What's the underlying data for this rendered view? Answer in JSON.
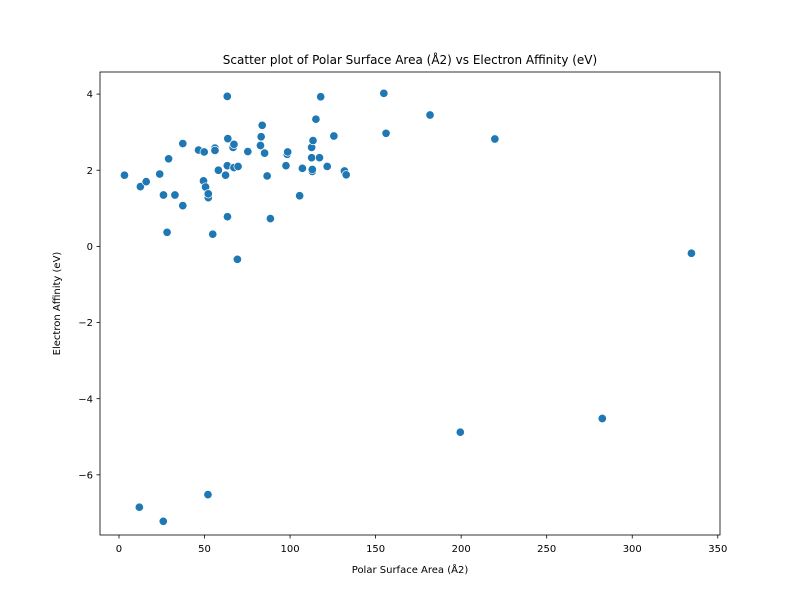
{
  "chart_data": {
    "type": "scatter",
    "title": "Scatter plot of Polar Surface Area (Å2) vs Electron Affinity (eV)",
    "xlabel": "Polar Surface Area (Å2)",
    "ylabel": "Electron Affinity (eV)",
    "xlim": [
      -11.1,
      351.3
    ],
    "ylim": [
      -7.58,
      4.58
    ],
    "xticks": [
      0,
      50,
      100,
      150,
      200,
      250,
      300,
      350
    ],
    "yticks": [
      -6,
      -4,
      -2,
      0,
      2,
      4
    ],
    "ytick_labels": [
      "−6",
      "−4",
      "−2",
      "0",
      "2",
      "4"
    ],
    "grid": false,
    "marker_color": "#1f77b4",
    "marker_edge_color": "#ffffff",
    "points": [
      {
        "x": 3.2,
        "y": 1.87
      },
      {
        "x": 12.5,
        "y": 1.57
      },
      {
        "x": 15.9,
        "y": 1.7
      },
      {
        "x": 23.8,
        "y": 1.9
      },
      {
        "x": 26.0,
        "y": 1.35
      },
      {
        "x": 28.1,
        "y": 0.37
      },
      {
        "x": 29.0,
        "y": 2.3
      },
      {
        "x": 32.7,
        "y": 1.35
      },
      {
        "x": 37.3,
        "y": 2.7
      },
      {
        "x": 37.3,
        "y": 1.07
      },
      {
        "x": 46.5,
        "y": 2.53
      },
      {
        "x": 49.4,
        "y": 1.72
      },
      {
        "x": 49.8,
        "y": 2.48
      },
      {
        "x": 50.6,
        "y": 1.56
      },
      {
        "x": 52.2,
        "y": 1.28
      },
      {
        "x": 52.2,
        "y": 1.38
      },
      {
        "x": 54.8,
        "y": 0.32
      },
      {
        "x": 56.1,
        "y": 2.58
      },
      {
        "x": 56.1,
        "y": 2.52
      },
      {
        "x": 58.1,
        "y": 2.0
      },
      {
        "x": 62.3,
        "y": 1.87
      },
      {
        "x": 63.3,
        "y": 2.12
      },
      {
        "x": 63.3,
        "y": 3.94
      },
      {
        "x": 63.4,
        "y": 0.78
      },
      {
        "x": 63.6,
        "y": 2.83
      },
      {
        "x": 66.7,
        "y": 2.6
      },
      {
        "x": 67.2,
        "y": 2.68
      },
      {
        "x": 67.2,
        "y": 2.07
      },
      {
        "x": 69.2,
        "y": -0.34
      },
      {
        "x": 69.6,
        "y": 2.1
      },
      {
        "x": 75.3,
        "y": 2.49
      },
      {
        "x": 82.7,
        "y": 2.65
      },
      {
        "x": 83.1,
        "y": 2.88
      },
      {
        "x": 83.7,
        "y": 3.18
      },
      {
        "x": 85.1,
        "y": 2.45
      },
      {
        "x": 86.6,
        "y": 1.85
      },
      {
        "x": 88.5,
        "y": 0.73
      },
      {
        "x": 97.6,
        "y": 2.12
      },
      {
        "x": 98.3,
        "y": 2.42
      },
      {
        "x": 98.6,
        "y": 2.48
      },
      {
        "x": 105.6,
        "y": 1.33
      },
      {
        "x": 107.2,
        "y": 2.05
      },
      {
        "x": 112.6,
        "y": 2.6
      },
      {
        "x": 112.6,
        "y": 2.33
      },
      {
        "x": 113.0,
        "y": 1.97
      },
      {
        "x": 113.0,
        "y": 2.02
      },
      {
        "x": 113.4,
        "y": 2.78
      },
      {
        "x": 115.1,
        "y": 3.34
      },
      {
        "x": 117.2,
        "y": 2.33
      },
      {
        "x": 117.9,
        "y": 3.93
      },
      {
        "x": 121.7,
        "y": 2.1
      },
      {
        "x": 125.6,
        "y": 2.9
      },
      {
        "x": 131.8,
        "y": 1.98
      },
      {
        "x": 132.8,
        "y": 1.88
      },
      {
        "x": 154.8,
        "y": 4.02
      },
      {
        "x": 156.1,
        "y": 2.97
      },
      {
        "x": 181.8,
        "y": 3.45
      },
      {
        "x": 199.5,
        "y": -4.88
      },
      {
        "x": 219.7,
        "y": 2.82
      },
      {
        "x": 282.5,
        "y": -4.52
      },
      {
        "x": 334.6,
        "y": -0.18
      },
      {
        "x": 11.9,
        "y": -6.85
      },
      {
        "x": 25.9,
        "y": -7.22
      },
      {
        "x": 52.0,
        "y": -6.52
      }
    ]
  }
}
